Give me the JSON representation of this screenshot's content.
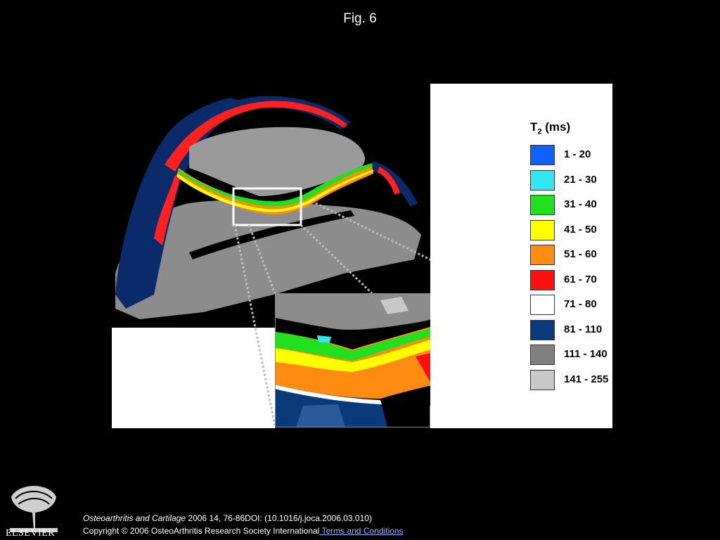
{
  "figure": {
    "title": "Fig. 6",
    "image_subject": "knee-cartilage-t2-map-icon",
    "inset_subject": "magnified-cartilage-region-icon"
  },
  "legend": {
    "title_main": "T",
    "title_sub": "2",
    "title_unit": " (ms)",
    "items": [
      {
        "label": "1 - 20",
        "color": "#1060ff"
      },
      {
        "label": "21 - 30",
        "color": "#30e8f0"
      },
      {
        "label": "31 - 40",
        "color": "#20e020"
      },
      {
        "label": "41 - 50",
        "color": "#ffff00"
      },
      {
        "label": "51 - 60",
        "color": "#ff8c10"
      },
      {
        "label": "61 - 70",
        "color": "#ff1010"
      },
      {
        "label": "71 - 80",
        "color": "#ffffff"
      },
      {
        "label": "81 - 110",
        "color": "#0a3a7a"
      },
      {
        "label": "111 - 140",
        "color": "#808080"
      },
      {
        "label": "141 - 255",
        "color": "#c8c8c8"
      }
    ]
  },
  "footer": {
    "journal": "Osteoarthritis and Cartilage",
    "citation_rest": " 2006 14, 76-86DOI: (10.1016/j.joca.2006.03.010)",
    "copyright": "Copyright © 2006 OsteoArthritis Research Society International",
    "terms_link": " Terms and Conditions",
    "publisher": "ELSEVIER"
  }
}
